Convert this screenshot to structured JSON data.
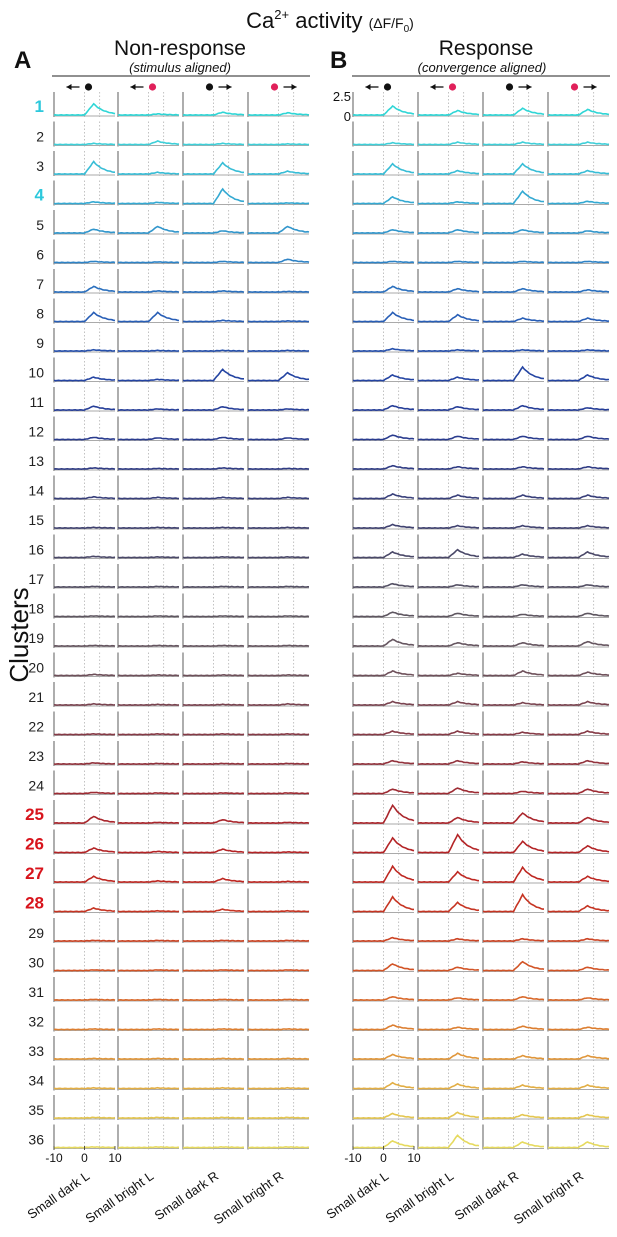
{
  "figure": {
    "title_main": "Ca",
    "title_sup": "2+",
    "title_rest": " activity ",
    "title_unit": "(ΔF/F",
    "title_unit_sub": "0",
    "title_unit_close": ")",
    "ylabel": "Clusters"
  },
  "panels": [
    {
      "letter": "A",
      "title": "Non-response",
      "subtitle": "(stimulus aligned)"
    },
    {
      "letter": "B",
      "title": "Response",
      "subtitle": "(convergence aligned)"
    }
  ],
  "scale": {
    "top": "2.5",
    "bottom": "0"
  },
  "xaxis": {
    "tick_left": "-10",
    "tick_mid": "0",
    "tick_right": "10"
  },
  "stimuli": [
    "Small dark L",
    "Small bright L",
    "Small dark R",
    "Small bright R"
  ],
  "stimulus_icons": [
    {
      "arrow": "left",
      "dot": "black"
    },
    {
      "arrow": "left",
      "dot": "magenta"
    },
    {
      "arrow": "right",
      "dot": "black"
    },
    {
      "arrow": "right",
      "dot": "magenta"
    }
  ],
  "colors": {
    "dot_black": "#111111",
    "dot_magenta": "#e0205a",
    "highlight_cyan": "#2cc8dc",
    "highlight_red": "#d8141c"
  },
  "clusters": [
    {
      "label": "1",
      "color": "#2fd6d6",
      "highlight": "cyan"
    },
    {
      "label": "2",
      "color": "#3ecfd8",
      "highlight": ""
    },
    {
      "label": "3",
      "color": "#38bdd6",
      "highlight": ""
    },
    {
      "label": "4",
      "color": "#34a9d2",
      "highlight": "cyan"
    },
    {
      "label": "5",
      "color": "#3196cc",
      "highlight": ""
    },
    {
      "label": "6",
      "color": "#2e83c6",
      "highlight": ""
    },
    {
      "label": "7",
      "color": "#2b70be",
      "highlight": ""
    },
    {
      "label": "8",
      "color": "#285eb6",
      "highlight": ""
    },
    {
      "label": "9",
      "color": "#2650ac",
      "highlight": ""
    },
    {
      "label": "10",
      "color": "#2444a2",
      "highlight": ""
    },
    {
      "label": "11",
      "color": "#263e98",
      "highlight": ""
    },
    {
      "label": "12",
      "color": "#2a3c8e",
      "highlight": ""
    },
    {
      "label": "13",
      "color": "#303c84",
      "highlight": ""
    },
    {
      "label": "14",
      "color": "#383f7a",
      "highlight": ""
    },
    {
      "label": "15",
      "color": "#404270",
      "highlight": ""
    },
    {
      "label": "16",
      "color": "#4a4868",
      "highlight": ""
    },
    {
      "label": "17",
      "color": "#545064",
      "highlight": ""
    },
    {
      "label": "18",
      "color": "#5e5660",
      "highlight": ""
    },
    {
      "label": "19",
      "color": "#665660",
      "highlight": ""
    },
    {
      "label": "20",
      "color": "#6e505a",
      "highlight": ""
    },
    {
      "label": "21",
      "color": "#7a4450",
      "highlight": ""
    },
    {
      "label": "22",
      "color": "#863a46",
      "highlight": ""
    },
    {
      "label": "23",
      "color": "#92323c",
      "highlight": ""
    },
    {
      "label": "24",
      "color": "#9e2c34",
      "highlight": ""
    },
    {
      "label": "25",
      "color": "#aa262c",
      "highlight": "red"
    },
    {
      "label": "26",
      "color": "#b42426",
      "highlight": "red"
    },
    {
      "label": "27",
      "color": "#be2822",
      "highlight": "red"
    },
    {
      "label": "28",
      "color": "#c63422",
      "highlight": "red"
    },
    {
      "label": "29",
      "color": "#cc4424",
      "highlight": ""
    },
    {
      "label": "30",
      "color": "#d25426",
      "highlight": ""
    },
    {
      "label": "31",
      "color": "#d8682a",
      "highlight": ""
    },
    {
      "label": "32",
      "color": "#dc7e30",
      "highlight": ""
    },
    {
      "label": "33",
      "color": "#e0963a",
      "highlight": ""
    },
    {
      "label": "34",
      "color": "#e2ae44",
      "highlight": ""
    },
    {
      "label": "35",
      "color": "#e4c650",
      "highlight": ""
    },
    {
      "label": "36",
      "color": "#e6da5e",
      "highlight": ""
    }
  ],
  "chart_data": {
    "type": "line",
    "x_range": [
      -10,
      10
    ],
    "y_range": [
      0,
      2.5
    ],
    "peak_time": 3,
    "amplitudes": {
      "non_response": [
        [
          1.0,
          0.1,
          0.25,
          0.2
        ],
        [
          0.1,
          0.3,
          0.1,
          0.05
        ],
        [
          1.1,
          0.15,
          1.0,
          0.25
        ],
        [
          0.15,
          0.1,
          1.3,
          0.05
        ],
        [
          0.35,
          0.6,
          0.2,
          0.6
        ],
        [
          0.1,
          0.05,
          0.1,
          0.3
        ],
        [
          0.5,
          0.1,
          0.1,
          0.05
        ],
        [
          0.8,
          0.8,
          0.1,
          0.05
        ],
        [
          0.1,
          0.05,
          0.05,
          0.05
        ],
        [
          0.3,
          0.1,
          1.0,
          0.7
        ],
        [
          0.35,
          0.1,
          0.3,
          0.1
        ],
        [
          0.2,
          0.15,
          0.2,
          0.15
        ],
        [
          0.1,
          0.05,
          0.1,
          0.05
        ],
        [
          0.15,
          0.1,
          0.1,
          0.1
        ],
        [
          0.05,
          0.05,
          0.05,
          0.05
        ],
        [
          0.1,
          0.05,
          0.05,
          0.05
        ],
        [
          0.05,
          0.05,
          0.05,
          0.05
        ],
        [
          0.05,
          0.05,
          0.05,
          0.05
        ],
        [
          0.05,
          0.05,
          0.05,
          0.05
        ],
        [
          0.1,
          0.05,
          0.05,
          0.05
        ],
        [
          0.1,
          0.05,
          0.05,
          0.1
        ],
        [
          0.05,
          0.05,
          0.05,
          0.05
        ],
        [
          0.1,
          0.05,
          0.05,
          0.05
        ],
        [
          0.1,
          0.05,
          0.05,
          0.05
        ],
        [
          0.6,
          0.05,
          0.3,
          0.05
        ],
        [
          0.4,
          0.1,
          0.3,
          0.05
        ],
        [
          0.5,
          0.1,
          0.3,
          0.05
        ],
        [
          0.3,
          0.05,
          0.2,
          0.05
        ],
        [
          0.05,
          0.05,
          0.05,
          0.05
        ],
        [
          0.05,
          0.05,
          0.05,
          0.05
        ],
        [
          0.05,
          0.05,
          0.05,
          0.05
        ],
        [
          0.05,
          0.05,
          0.05,
          0.05
        ],
        [
          0.05,
          0.05,
          0.05,
          0.05
        ],
        [
          0.05,
          0.05,
          0.05,
          0.05
        ],
        [
          0.05,
          0.05,
          0.05,
          0.05
        ],
        [
          0.05,
          0.05,
          0.05,
          0.05
        ]
      ],
      "response": [
        [
          0.8,
          0.4,
          0.6,
          0.5
        ],
        [
          0.15,
          0.2,
          0.2,
          0.2
        ],
        [
          0.9,
          0.3,
          0.9,
          0.3
        ],
        [
          0.6,
          0.15,
          1.1,
          0.2
        ],
        [
          0.3,
          0.3,
          0.3,
          0.2
        ],
        [
          0.1,
          0.1,
          0.1,
          0.1
        ],
        [
          0.5,
          0.3,
          0.3,
          0.2
        ],
        [
          0.8,
          0.6,
          0.3,
          0.3
        ],
        [
          0.2,
          0.1,
          0.1,
          0.1
        ],
        [
          0.5,
          0.3,
          1.2,
          0.5
        ],
        [
          0.4,
          0.3,
          0.4,
          0.2
        ],
        [
          0.4,
          0.3,
          0.3,
          0.3
        ],
        [
          0.3,
          0.2,
          0.2,
          0.2
        ],
        [
          0.4,
          0.3,
          0.3,
          0.3
        ],
        [
          0.3,
          0.2,
          0.2,
          0.2
        ],
        [
          0.5,
          0.7,
          0.3,
          0.5
        ],
        [
          0.3,
          0.2,
          0.2,
          0.2
        ],
        [
          0.4,
          0.3,
          0.2,
          0.3
        ],
        [
          0.6,
          0.3,
          0.3,
          0.4
        ],
        [
          0.4,
          0.2,
          0.4,
          0.3
        ],
        [
          0.3,
          0.3,
          0.2,
          0.3
        ],
        [
          0.3,
          0.3,
          0.2,
          0.3
        ],
        [
          0.3,
          0.3,
          0.2,
          0.3
        ],
        [
          0.4,
          0.5,
          0.2,
          0.4
        ],
        [
          1.6,
          0.5,
          0.9,
          0.5
        ],
        [
          1.3,
          1.6,
          1.0,
          0.6
        ],
        [
          1.4,
          0.9,
          1.3,
          0.5
        ],
        [
          1.3,
          0.8,
          1.5,
          0.5
        ],
        [
          0.3,
          0.2,
          0.2,
          0.2
        ],
        [
          0.6,
          0.3,
          0.8,
          0.3
        ],
        [
          0.3,
          0.2,
          0.3,
          0.2
        ],
        [
          0.4,
          0.2,
          0.3,
          0.2
        ],
        [
          0.4,
          0.5,
          0.3,
          0.3
        ],
        [
          0.5,
          0.4,
          0.3,
          0.3
        ],
        [
          0.4,
          0.5,
          0.3,
          0.3
        ],
        [
          0.6,
          1.1,
          0.5,
          0.5
        ]
      ]
    }
  }
}
